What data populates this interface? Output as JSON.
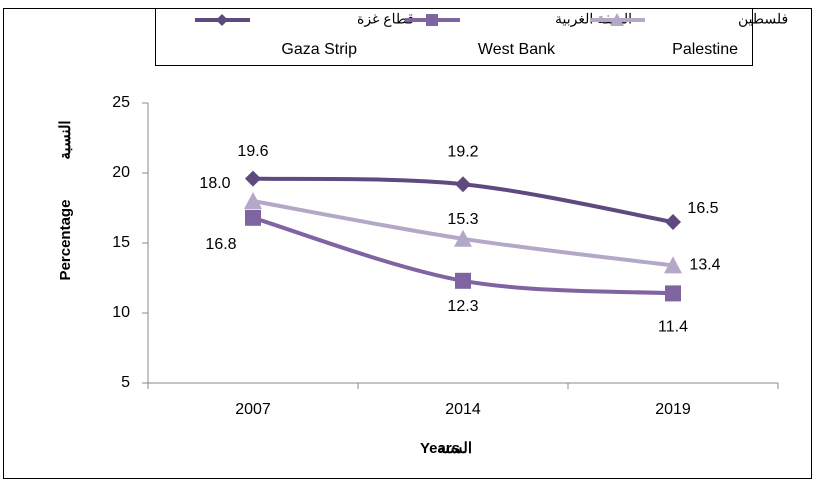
{
  "chart_data": {
    "type": "line",
    "categories": [
      "2007",
      "2014",
      "2019"
    ],
    "series": [
      {
        "name": "قطاع غزة",
        "name_en": "Gaza Strip",
        "color": "#5f4a7f",
        "marker": "diamond",
        "values": [
          19.6,
          19.2,
          16.5
        ],
        "value_labels": [
          "19.6",
          "19.2",
          "16.5"
        ]
      },
      {
        "name": "الضفة الغربية",
        "name_en": "West Bank",
        "color": "#8064a2",
        "marker": "square",
        "values": [
          16.8,
          12.3,
          11.4
        ],
        "value_labels": [
          "16.8",
          "12.3",
          "11.4"
        ]
      },
      {
        "name": "فلسطين",
        "name_en": "Palestine",
        "color": "#b3a8c8",
        "marker": "triangle",
        "values": [
          18.0,
          15.3,
          13.4
        ],
        "value_labels": [
          "18.0",
          "15.3",
          "13.4"
        ]
      }
    ],
    "xlabel": "Years",
    "xlabel_ar": "السنة",
    "ylabel": "Percentage",
    "ylabel_ar": "النسبة",
    "ylim": [
      5,
      25
    ],
    "yticks": [
      5,
      10,
      15,
      20,
      25
    ],
    "grid": false
  }
}
